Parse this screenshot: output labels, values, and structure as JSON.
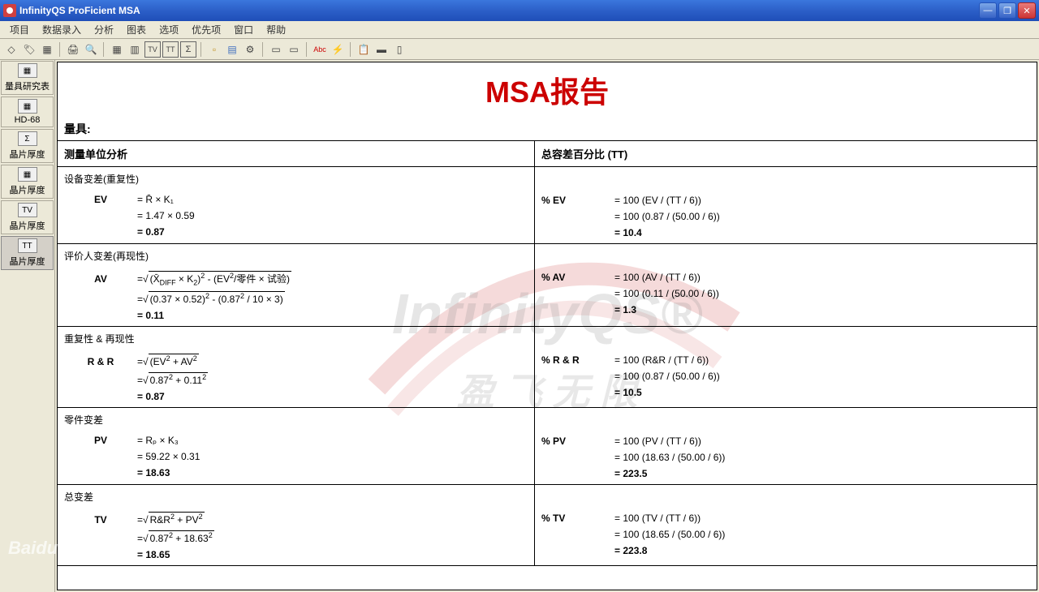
{
  "window": {
    "title": "InfinityQS ProFicient MSA"
  },
  "menu": [
    "项目",
    "数据录入",
    "分析",
    "图表",
    "选项",
    "优先项",
    "窗口",
    "帮助"
  ],
  "sidebar": [
    {
      "icon": "▦",
      "label": "量具研究表"
    },
    {
      "icon": "▦",
      "label": "HD-68"
    },
    {
      "icon": "Σ",
      "label": "晶片厚度"
    },
    {
      "icon": "▦",
      "label": "晶片厚度"
    },
    {
      "icon": "TV",
      "label": "晶片厚度"
    },
    {
      "icon": "TT",
      "label": "晶片厚度"
    }
  ],
  "report": {
    "title": "MSA报告",
    "gauge_label": "量具:",
    "left_header": "测量单位分析",
    "right_header": "总容差百分比 (TT)",
    "sections": [
      {
        "left_title": "设备变差(重复性)",
        "left_label": "EV",
        "left_formula": "= R̄ × K₁",
        "left_calc": "= 1.47 × 0.59",
        "left_result": "= 0.87",
        "right_label": "% EV",
        "right_formula": "= 100 (EV / (TT / 6))",
        "right_calc": "= 100 (0.87 / (50.00 / 6))",
        "right_result": "= 10.4"
      },
      {
        "left_title": "评价人变差(再现性)",
        "left_label": "AV",
        "left_formula_html": "=√<span class='sqrt'>(X̄<sub>DIFF</sub> × K<sub>2</sub>)<sup>2</sup> - (EV<sup>2</sup>/零件 × 试验)</span>",
        "left_calc_html": "=√<span class='sqrt'>(0.37 × 0.52)<sup>2</sup> - (0.87<sup>2</sup> / 10 × 3)</span>",
        "left_result": "= 0.11",
        "right_label": "% AV",
        "right_formula": "= 100 (AV / (TT / 6))",
        "right_calc": "= 100 (0.11 / (50.00 / 6))",
        "right_result": "= 1.3"
      },
      {
        "left_title": "重复性 & 再现性",
        "left_label": "R & R",
        "left_formula_html": "=√<span class='sqrt'>(EV<sup>2</sup> + AV<sup>2</sup></span>",
        "left_calc_html": "=√<span class='sqrt'>0.87<sup>2</sup> + 0.11<sup>2</sup></span>",
        "left_result": "= 0.87",
        "right_label": "% R & R",
        "right_formula": "= 100 (R&R / (TT / 6))",
        "right_calc": "= 100 (0.87 / (50.00 / 6))",
        "right_result": "= 10.5"
      },
      {
        "left_title": "零件变差",
        "left_label": "PV",
        "left_formula": "= Rₚ × K₃",
        "left_calc": "= 59.22 × 0.31",
        "left_result": "= 18.63",
        "right_label": "% PV",
        "right_formula": "= 100 (PV / (TT / 6))",
        "right_calc": "= 100 (18.63 / (50.00 / 6))",
        "right_result": "= 223.5"
      },
      {
        "left_title": "总变差",
        "left_label": "TV",
        "left_formula_html": "=√<span class='sqrt'>R&R<sup>2</sup> + PV<sup>2</sup></span>",
        "left_calc_html": "=√<span class='sqrt'>0.87<sup>2</sup> + 18.63<sup>2</sup></span>",
        "left_result": "= 18.65",
        "right_label": "% TV",
        "right_formula": "= 100 (TV / (TT / 6))",
        "right_calc": "= 100 (18.65 / (50.00 / 6))",
        "right_result": "= 223.8"
      }
    ]
  },
  "watermark": {
    "main": "InfinityQS®",
    "sub": "盈 飞 无 限"
  },
  "colors": {
    "titlebar": "#2c5fc8",
    "bg": "#ece9d8",
    "title_red": "#cc0000",
    "watermark_gray": "rgba(140,140,140,0.22)",
    "border": "#000000"
  }
}
